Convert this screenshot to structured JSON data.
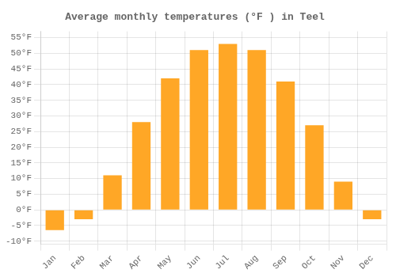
{
  "chart_data": {
    "type": "bar",
    "title": "Average monthly temperatures (°F ) in Teel",
    "categories": [
      "Jan",
      "Feb",
      "Mar",
      "Apr",
      "May",
      "Jun",
      "Jul",
      "Aug",
      "Sep",
      "Oct",
      "Nov",
      "Dec"
    ],
    "values": [
      -6.5,
      -3,
      11,
      28,
      42,
      51,
      53,
      51,
      41,
      27,
      9,
      -3
    ],
    "color": "#FFA726",
    "ylim": [
      -11,
      57
    ],
    "yticks": [
      {
        "value": -10,
        "label": "-10°F"
      },
      {
        "value": -5,
        "label": "-5°F"
      },
      {
        "value": 0,
        "label": "0°F"
      },
      {
        "value": 5,
        "label": "5°F"
      },
      {
        "value": 10,
        "label": "10°F"
      },
      {
        "value": 15,
        "label": "15°F"
      },
      {
        "value": 20,
        "label": "20°F"
      },
      {
        "value": 25,
        "label": "25°F"
      },
      {
        "value": 30,
        "label": "30°F"
      },
      {
        "value": 35,
        "label": "35°F"
      },
      {
        "value": 40,
        "label": "40°F"
      },
      {
        "value": 45,
        "label": "45°F"
      },
      {
        "value": 50,
        "label": "50°F"
      },
      {
        "value": 55,
        "label": "55°F"
      }
    ],
    "grid": true
  }
}
